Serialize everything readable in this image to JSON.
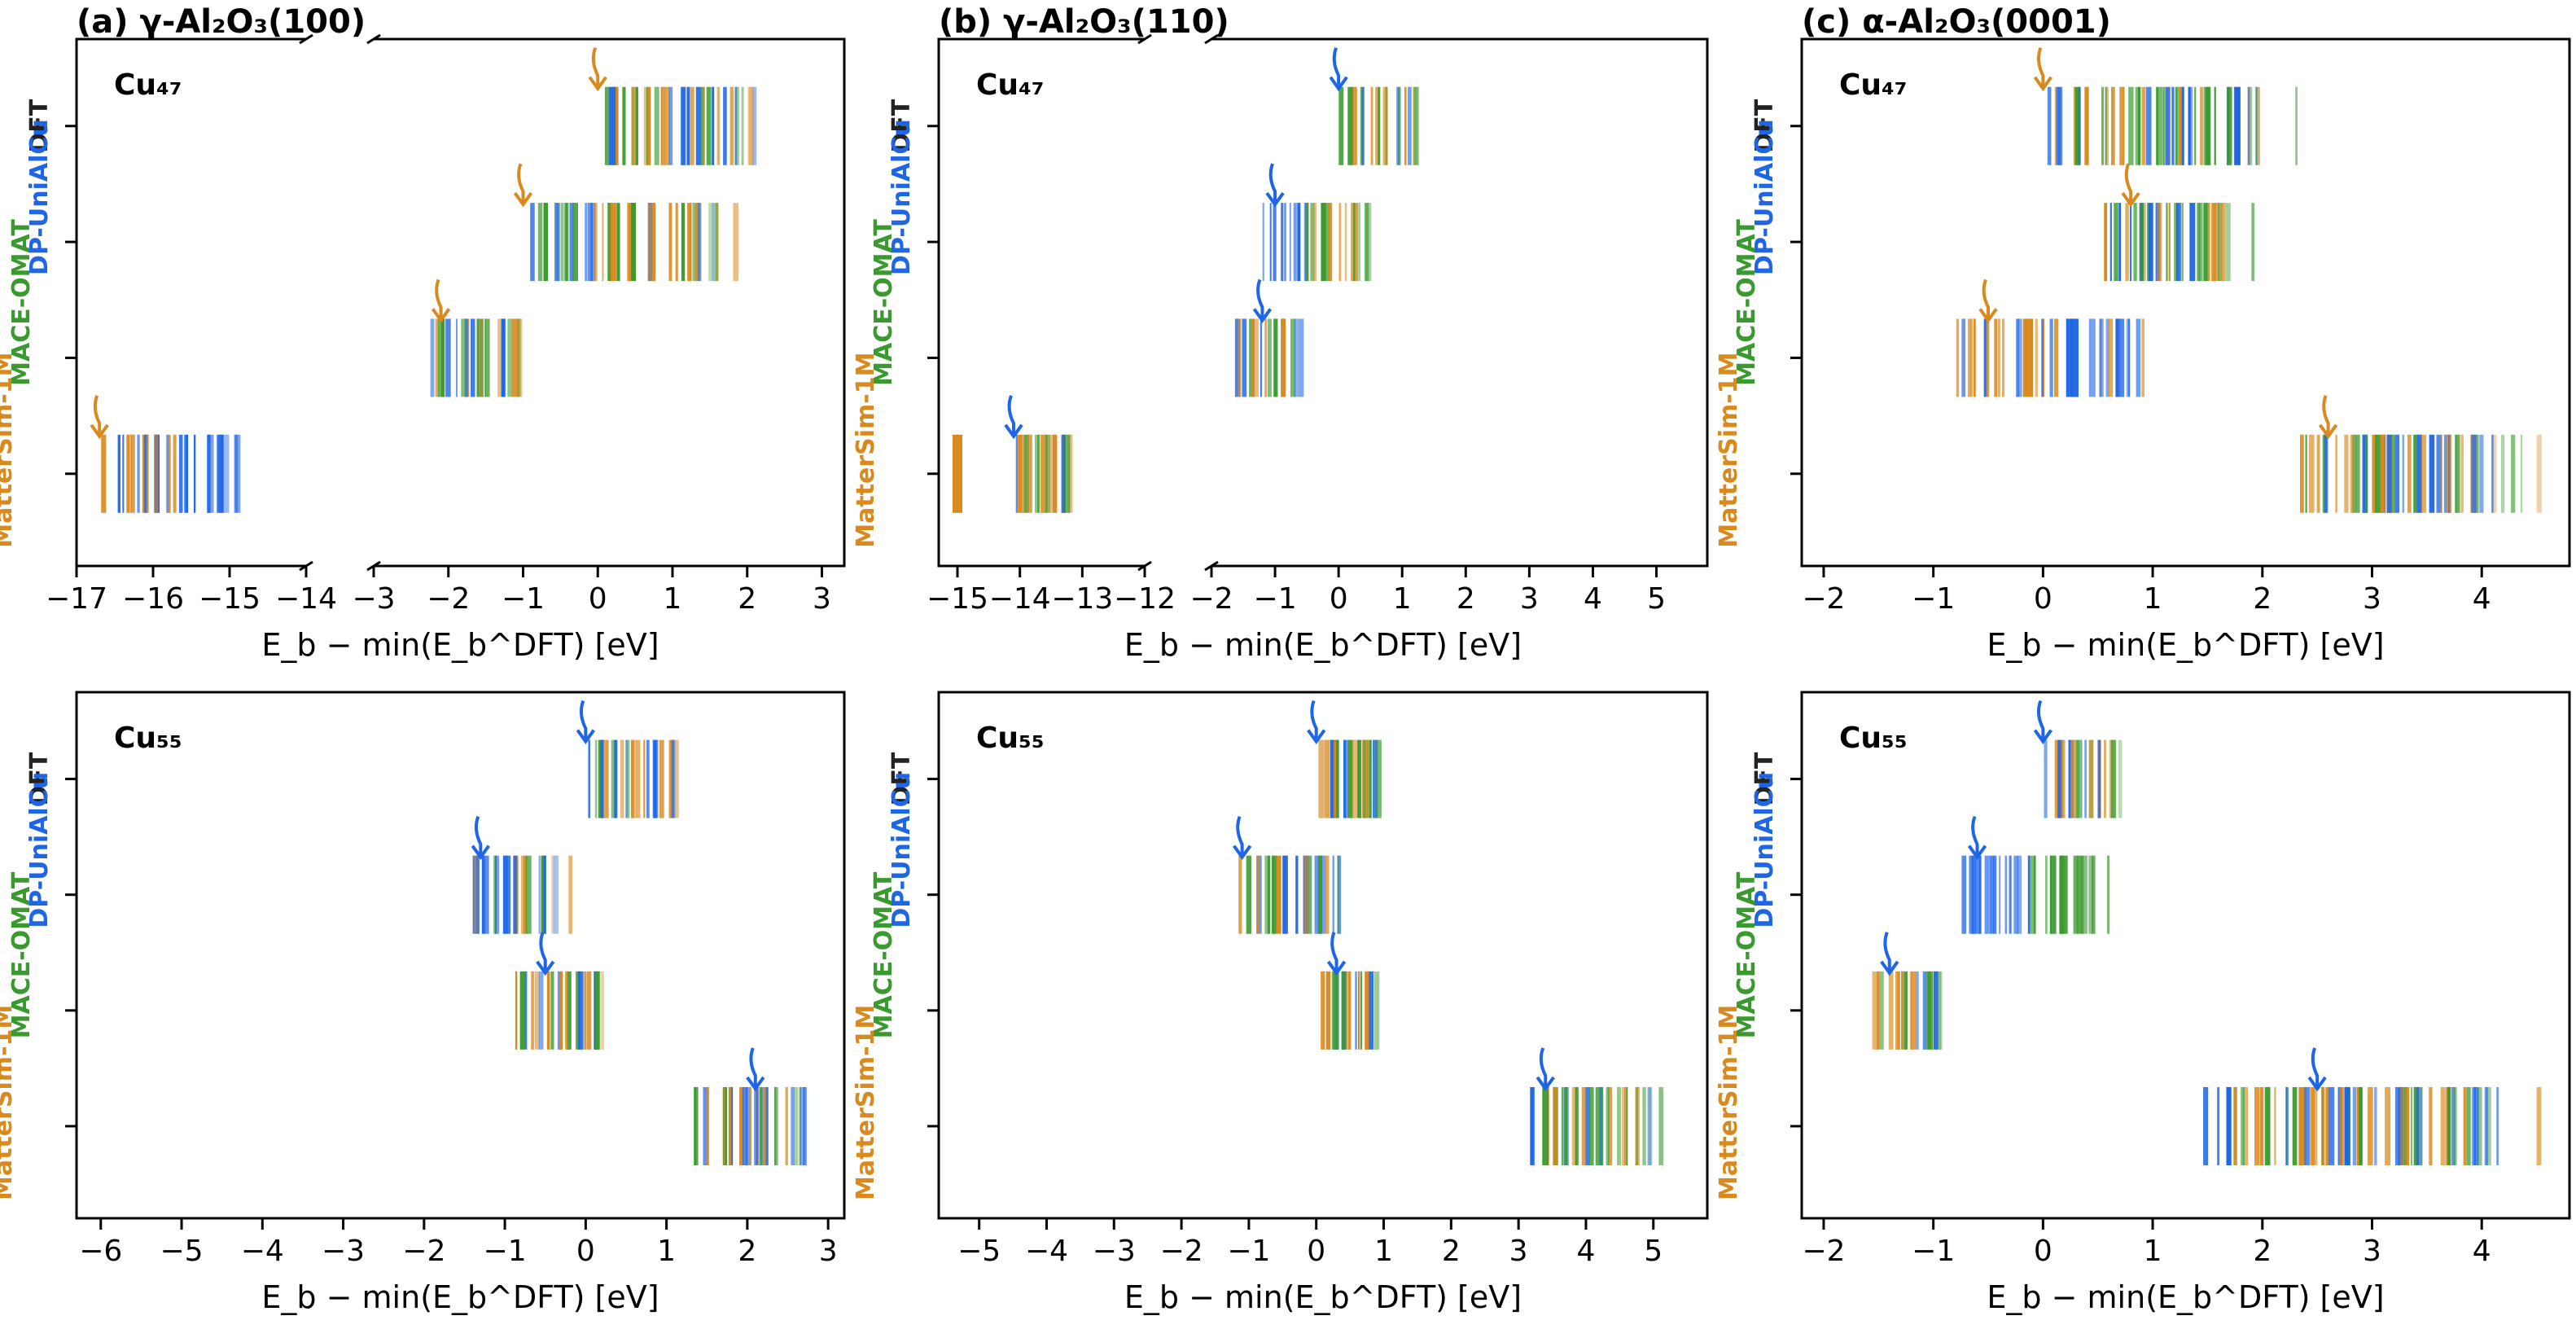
{
  "colors": {
    "MatterSim-1M": "#d98a1f",
    "MACE-OMAT": "#3b9a2f",
    "DP-UniAlCu": "#1f66e6",
    "DFT": "#222222"
  },
  "chart_data": [
    {
      "panel": "a",
      "title_text": "(a) γ-Al₂O₃(100)",
      "cluster_label": "Cu₄₇",
      "type": "strip",
      "xlabel": "E_b − min(E_b^DFT) [eV]",
      "broken_axis": true,
      "segments": [
        {
          "xlim": [
            -17,
            -14
          ],
          "ticks": [
            -17,
            -16,
            -15,
            -14
          ]
        },
        {
          "xlim": [
            -3,
            3.3
          ],
          "ticks": [
            -3,
            -2,
            -1,
            0,
            1,
            2,
            3
          ]
        }
      ],
      "tick_labels": [
        "−17",
        "−16",
        "−15",
        "−14",
        "−3",
        "−2",
        "−1",
        "0",
        "1",
        "2",
        "3"
      ],
      "rows": [
        "DFT",
        "DP-UniAlCu",
        "MACE-OMAT",
        "MatterSim-1M"
      ],
      "bands": [
        {
          "row": "DFT",
          "range": [
            0,
            2.4
          ],
          "mix": "mixed",
          "marker": 0,
          "marker_color": "MatterSim-1M"
        },
        {
          "row": "DP-UniAlCu",
          "range": [
            -1,
            2
          ],
          "mix": "mixed",
          "marker": -1,
          "marker_color": "MatterSim-1M"
        },
        {
          "row": "MACE-OMAT",
          "range": [
            -2.3,
            -0.8
          ],
          "mix": "mixed",
          "marker": -2.1,
          "marker_color": "MatterSim-1M"
        },
        {
          "row": "MatterSim-1M",
          "range": [
            -16.7,
            -14.7
          ],
          "mix": "orange-blue",
          "marker": -16.7,
          "marker_color": "MatterSim-1M"
        }
      ]
    },
    {
      "panel": "b",
      "title_text": "(b) γ-Al₂O₃(110)",
      "cluster_label": "Cu₄₇",
      "type": "strip",
      "xlabel": "E_b − min(E_b^DFT) [eV]",
      "broken_axis": true,
      "segments": [
        {
          "xlim": [
            -15.3,
            -12
          ],
          "ticks": [
            -15,
            -14,
            -13,
            -12
          ]
        },
        {
          "xlim": [
            -2,
            5.8
          ],
          "ticks": [
            -2,
            -1,
            0,
            1,
            2,
            3,
            4,
            5
          ]
        }
      ],
      "tick_labels": [
        "−15",
        "−14",
        "−13",
        "−12",
        "−2",
        "−1",
        "0",
        "1",
        "2",
        "3",
        "4",
        "5"
      ],
      "rows": [
        "DFT",
        "DP-UniAlCu",
        "MACE-OMAT",
        "MatterSim-1M"
      ],
      "bands": [
        {
          "row": "DFT",
          "range": [
            0,
            1.4
          ],
          "mix": "mixed",
          "marker": 0,
          "marker_color": "DP-UniAlCu"
        },
        {
          "row": "DP-UniAlCu",
          "range": [
            -1.2,
            0.7
          ],
          "mix": "blue-orange",
          "marker": -1,
          "marker_color": "DP-UniAlCu"
        },
        {
          "row": "MACE-OMAT",
          "range": [
            -1.7,
            -0.5
          ],
          "mix": "mixed",
          "marker": -1.2,
          "marker_color": "DP-UniAlCu"
        },
        {
          "row": "MatterSim-1M",
          "range": [
            -14.1,
            -13.1
          ],
          "mix": "mixed",
          "marker": -14.1,
          "marker_color": "DP-UniAlCu",
          "outlier": -15
        }
      ]
    },
    {
      "panel": "c",
      "title_text": "(c) α-Al₂O₃(0001)",
      "cluster_label": "Cu₄₇",
      "type": "strip",
      "xlabel": "E_b − min(E_b^DFT) [eV]",
      "broken_axis": false,
      "segments": [
        {
          "xlim": [
            -2.2,
            4.8
          ],
          "ticks": [
            -2,
            -1,
            0,
            1,
            2,
            3,
            4
          ]
        }
      ],
      "tick_labels": [
        "−2",
        "−1",
        "0",
        "1",
        "2",
        "3",
        "4"
      ],
      "rows": [
        "DFT",
        "DP-UniAlCu",
        "MACE-OMAT",
        "MatterSim-1M"
      ],
      "bands": [
        {
          "row": "DFT",
          "range": [
            0,
            2.3
          ],
          "mix": "mixed",
          "marker": 0,
          "marker_color": "MatterSim-1M"
        },
        {
          "row": "DP-UniAlCu",
          "range": [
            0.5,
            1.9
          ],
          "mix": "mixed",
          "marker": 0.8,
          "marker_color": "MatterSim-1M"
        },
        {
          "row": "MACE-OMAT",
          "range": [
            -0.8,
            1.1
          ],
          "mix": "orange-blue",
          "marker": -0.5,
          "marker_color": "MatterSim-1M"
        },
        {
          "row": "MatterSim-1M",
          "range": [
            2.3,
            4.5
          ],
          "mix": "mixed",
          "marker": 2.6,
          "marker_color": "MatterSim-1M"
        }
      ]
    },
    {
      "panel": "d",
      "title_text": "",
      "cluster_label": "Cu₅₅",
      "type": "strip",
      "xlabel": "E_b − min(E_b^DFT) [eV]",
      "broken_axis": false,
      "segments": [
        {
          "xlim": [
            -6.3,
            3.2
          ],
          "ticks": [
            -6,
            -5,
            -4,
            -3,
            -2,
            -1,
            0,
            1,
            2,
            3
          ]
        }
      ],
      "tick_labels": [
        "−6",
        "−5",
        "−4",
        "−3",
        "−2",
        "−1",
        "0",
        "1",
        "2",
        "3"
      ],
      "rows": [
        "DFT",
        "DP-UniAlCu",
        "MACE-OMAT",
        "MatterSim-1M"
      ],
      "bands": [
        {
          "row": "DFT",
          "range": [
            0,
            1.3
          ],
          "mix": "mixed",
          "marker": 0,
          "marker_color": "DP-UniAlCu"
        },
        {
          "row": "DP-UniAlCu",
          "range": [
            -1.5,
            -0.2
          ],
          "mix": "mixed",
          "marker": -1.3,
          "marker_color": "DP-UniAlCu"
        },
        {
          "row": "MACE-OMAT",
          "range": [
            -0.9,
            0.4
          ],
          "mix": "mixed",
          "marker": -0.5,
          "marker_color": "DP-UniAlCu"
        },
        {
          "row": "MatterSim-1M",
          "range": [
            1.2,
            2.9
          ],
          "mix": "mixed",
          "marker": 2.1,
          "marker_color": "DP-UniAlCu"
        }
      ]
    },
    {
      "panel": "e",
      "title_text": "",
      "cluster_label": "Cu₅₅",
      "type": "strip",
      "xlabel": "E_b − min(E_b^DFT) [eV]",
      "broken_axis": false,
      "segments": [
        {
          "xlim": [
            -5.6,
            5.8
          ],
          "ticks": [
            -5,
            -4,
            -3,
            -2,
            -1,
            0,
            1,
            2,
            3,
            4,
            5
          ]
        }
      ],
      "tick_labels": [
        "−5",
        "−4",
        "−3",
        "−2",
        "−1",
        "0",
        "1",
        "2",
        "3",
        "4",
        "5"
      ],
      "rows": [
        "DFT",
        "DP-UniAlCu",
        "MACE-OMAT",
        "MatterSim-1M"
      ],
      "bands": [
        {
          "row": "DFT",
          "range": [
            0,
            1.1
          ],
          "mix": "mixed",
          "marker": 0,
          "marker_color": "DP-UniAlCu"
        },
        {
          "row": "DP-UniAlCu",
          "range": [
            -1.2,
            0.6
          ],
          "mix": "mixed",
          "marker": -1.1,
          "marker_color": "DP-UniAlCu"
        },
        {
          "row": "MACE-OMAT",
          "range": [
            0,
            1.0
          ],
          "mix": "mixed",
          "marker": 0.3,
          "marker_color": "DP-UniAlCu"
        },
        {
          "row": "MatterSim-1M",
          "range": [
            3.1,
            5.3
          ],
          "mix": "mixed",
          "marker": 3.4,
          "marker_color": "DP-UniAlCu"
        }
      ]
    },
    {
      "panel": "f",
      "title_text": "",
      "cluster_label": "Cu₅₅",
      "type": "strip",
      "xlabel": "E_b − min(E_b^DFT) [eV]",
      "broken_axis": false,
      "segments": [
        {
          "xlim": [
            -2.2,
            4.8
          ],
          "ticks": [
            -2,
            -1,
            0,
            1,
            2,
            3,
            4
          ]
        }
      ],
      "tick_labels": [
        "−2",
        "−1",
        "0",
        "1",
        "2",
        "3",
        "4"
      ],
      "rows": [
        "DFT",
        "DP-UniAlCu",
        "MACE-OMAT",
        "MatterSim-1M"
      ],
      "bands": [
        {
          "row": "DFT",
          "range": [
            0,
            0.8
          ],
          "mix": "mixed",
          "marker": 0,
          "marker_color": "DP-UniAlCu"
        },
        {
          "row": "DP-UniAlCu",
          "range": [
            -0.8,
            0.7
          ],
          "mix": "blue-green",
          "marker": -0.6,
          "marker_color": "DP-UniAlCu"
        },
        {
          "row": "MACE-OMAT",
          "range": [
            -1.6,
            -0.8
          ],
          "mix": "mixed",
          "marker": -1.4,
          "marker_color": "DP-UniAlCu"
        },
        {
          "row": "MatterSim-1M",
          "range": [
            1.4,
            4.5
          ],
          "mix": "mixed",
          "marker": 2.5,
          "marker_color": "DP-UniAlCu"
        }
      ]
    }
  ]
}
